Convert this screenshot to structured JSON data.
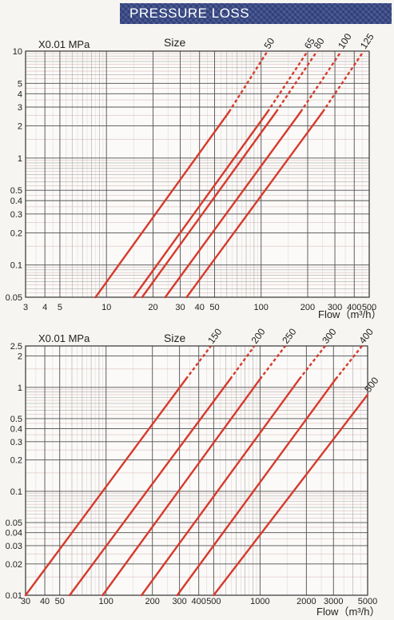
{
  "banner": {
    "title": "PRESSURE LOSS"
  },
  "colors": {
    "line": "#d63a2c",
    "grid_major": "#555555",
    "grid_minor": "#a9a9a9",
    "grid_accent": "#c9a0a0",
    "banner_bg": "#2f3f7c"
  },
  "chart_data": [
    {
      "type": "line",
      "scale": "log-log",
      "grid": true,
      "title": "",
      "ylabel": "X0.01 MPa",
      "xlabel": "Flow（m³/h）",
      "legend_title": "Size",
      "xlim": [
        3,
        500
      ],
      "ylim": [
        0.05,
        10
      ],
      "xticks": [
        3,
        4,
        5,
        10,
        20,
        30,
        40,
        50,
        100,
        200,
        300,
        400,
        500
      ],
      "yticks": [
        0.05,
        0.1,
        0.2,
        0.3,
        0.4,
        0.5,
        1,
        2,
        3,
        4,
        5,
        10
      ],
      "xtick_labels": [
        "3",
        "4",
        "5",
        "10",
        "20",
        "30",
        "40",
        "50",
        "100",
        "200",
        "300",
        "400",
        "500"
      ],
      "ytick_labels": [
        "0.05",
        "0.1",
        "0.2",
        "0.3",
        "0.4",
        "0.5",
        "1",
        "2",
        "3",
        "4",
        "5",
        "10"
      ],
      "series": [
        {
          "name": "50",
          "x": [
            8.5,
            62,
            110
          ],
          "y": [
            0.05,
            2.7,
            10
          ]
        },
        {
          "name": "65",
          "x": [
            15,
            110,
            200
          ],
          "y": [
            0.05,
            2.7,
            10
          ]
        },
        {
          "name": "80",
          "x": [
            17,
            125,
            230
          ],
          "y": [
            0.05,
            2.7,
            10
          ]
        },
        {
          "name": "100",
          "x": [
            24,
            180,
            330
          ],
          "y": [
            0.05,
            2.7,
            10
          ]
        },
        {
          "name": "125",
          "x": [
            33,
            250,
            460
          ],
          "y": [
            0.05,
            2.7,
            10
          ]
        }
      ]
    },
    {
      "type": "line",
      "scale": "log-log",
      "grid": true,
      "title": "",
      "ylabel": "X0.01 MPa",
      "xlabel": "Flow（m³/h）",
      "legend_title": "Size",
      "xlim": [
        30,
        5000
      ],
      "ylim": [
        0.01,
        2.5
      ],
      "xticks": [
        30,
        40,
        50,
        100,
        200,
        300,
        400,
        500,
        1000,
        2000,
        3000,
        5000
      ],
      "yticks": [
        0.01,
        0.02,
        0.03,
        0.04,
        0.05,
        0.1,
        0.2,
        0.3,
        0.4,
        0.5,
        1,
        2,
        2.5
      ],
      "xtick_labels": [
        "30",
        "40",
        "50",
        "100",
        "200",
        "300",
        "400",
        "500",
        "1000",
        "2000",
        "3000",
        "5000"
      ],
      "ytick_labels": [
        "0.01",
        "0.02",
        "0.03",
        "0.04",
        "0.05",
        "0.1",
        "0.2",
        "0.3",
        "0.4",
        "0.5",
        "1",
        "2",
        "2.5"
      ],
      "series": [
        {
          "name": "150",
          "x": [
            30,
            330,
            480
          ],
          "y": [
            0.01,
            1.2,
            2.5
          ]
        },
        {
          "name": "200",
          "x": [
            58,
            640,
            920
          ],
          "y": [
            0.01,
            1.2,
            2.5
          ]
        },
        {
          "name": "250",
          "x": [
            95,
            1000,
            1460
          ],
          "y": [
            0.01,
            1.2,
            2.5
          ]
        },
        {
          "name": "300",
          "x": [
            170,
            1800,
            2650
          ],
          "y": [
            0.01,
            1.2,
            2.5
          ]
        },
        {
          "name": "400",
          "x": [
            290,
            3100,
            4600
          ],
          "y": [
            0.01,
            1.2,
            2.5
          ]
        },
        {
          "name": "500",
          "x": [
            500,
            5000
          ],
          "y": [
            0.01,
            0.85
          ]
        }
      ]
    }
  ]
}
